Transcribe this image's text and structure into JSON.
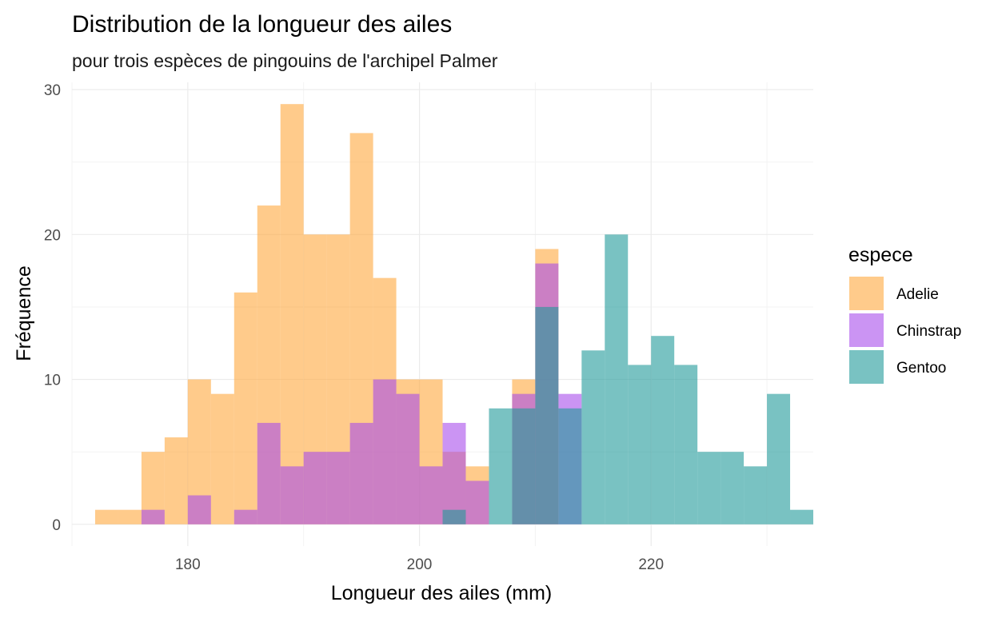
{
  "chart_data": {
    "type": "bar",
    "subtype": "histogram-overlapping",
    "title": "Distribution de la longueur des ailes",
    "subtitle": "pour trois espèces de pingouins de l'archipel Palmer",
    "xlabel": "Longueur des ailes (mm)",
    "ylabel": "Fréquence",
    "xlim": [
      170,
      234
    ],
    "ylim": [
      -1.5,
      30.5
    ],
    "x_ticks": [
      180,
      200,
      220
    ],
    "y_ticks": [
      0,
      10,
      20,
      30
    ],
    "grid": true,
    "legend": {
      "title": "espece",
      "position": "right"
    },
    "bin_width": 2,
    "bin_start": 172,
    "series": [
      {
        "name": "Adelie",
        "color": "#FFA83D",
        "values": [
          1,
          1,
          5,
          6,
          10,
          9,
          16,
          22,
          29,
          20,
          20,
          27,
          17,
          10,
          10,
          5,
          4,
          0,
          10,
          19,
          0,
          0,
          0,
          0,
          0,
          0,
          0,
          0,
          0,
          0,
          0
        ]
      },
      {
        "name": "Chinstrap",
        "color": "#A84DEB",
        "values": [
          0,
          0,
          1,
          0,
          2,
          0,
          1,
          7,
          4,
          5,
          5,
          7,
          10,
          9,
          4,
          7,
          3,
          0,
          9,
          18,
          9,
          0,
          0,
          0,
          0,
          0,
          0,
          0,
          0,
          0,
          0
        ]
      },
      {
        "name": "Gentoo",
        "color": "#1F9A99",
        "values": [
          0,
          0,
          0,
          0,
          0,
          0,
          0,
          0,
          0,
          0,
          0,
          0,
          0,
          0,
          0,
          1,
          0,
          8,
          8,
          15,
          8,
          12,
          20,
          11,
          13,
          11,
          5,
          5,
          4,
          9,
          1
        ]
      }
    ]
  }
}
